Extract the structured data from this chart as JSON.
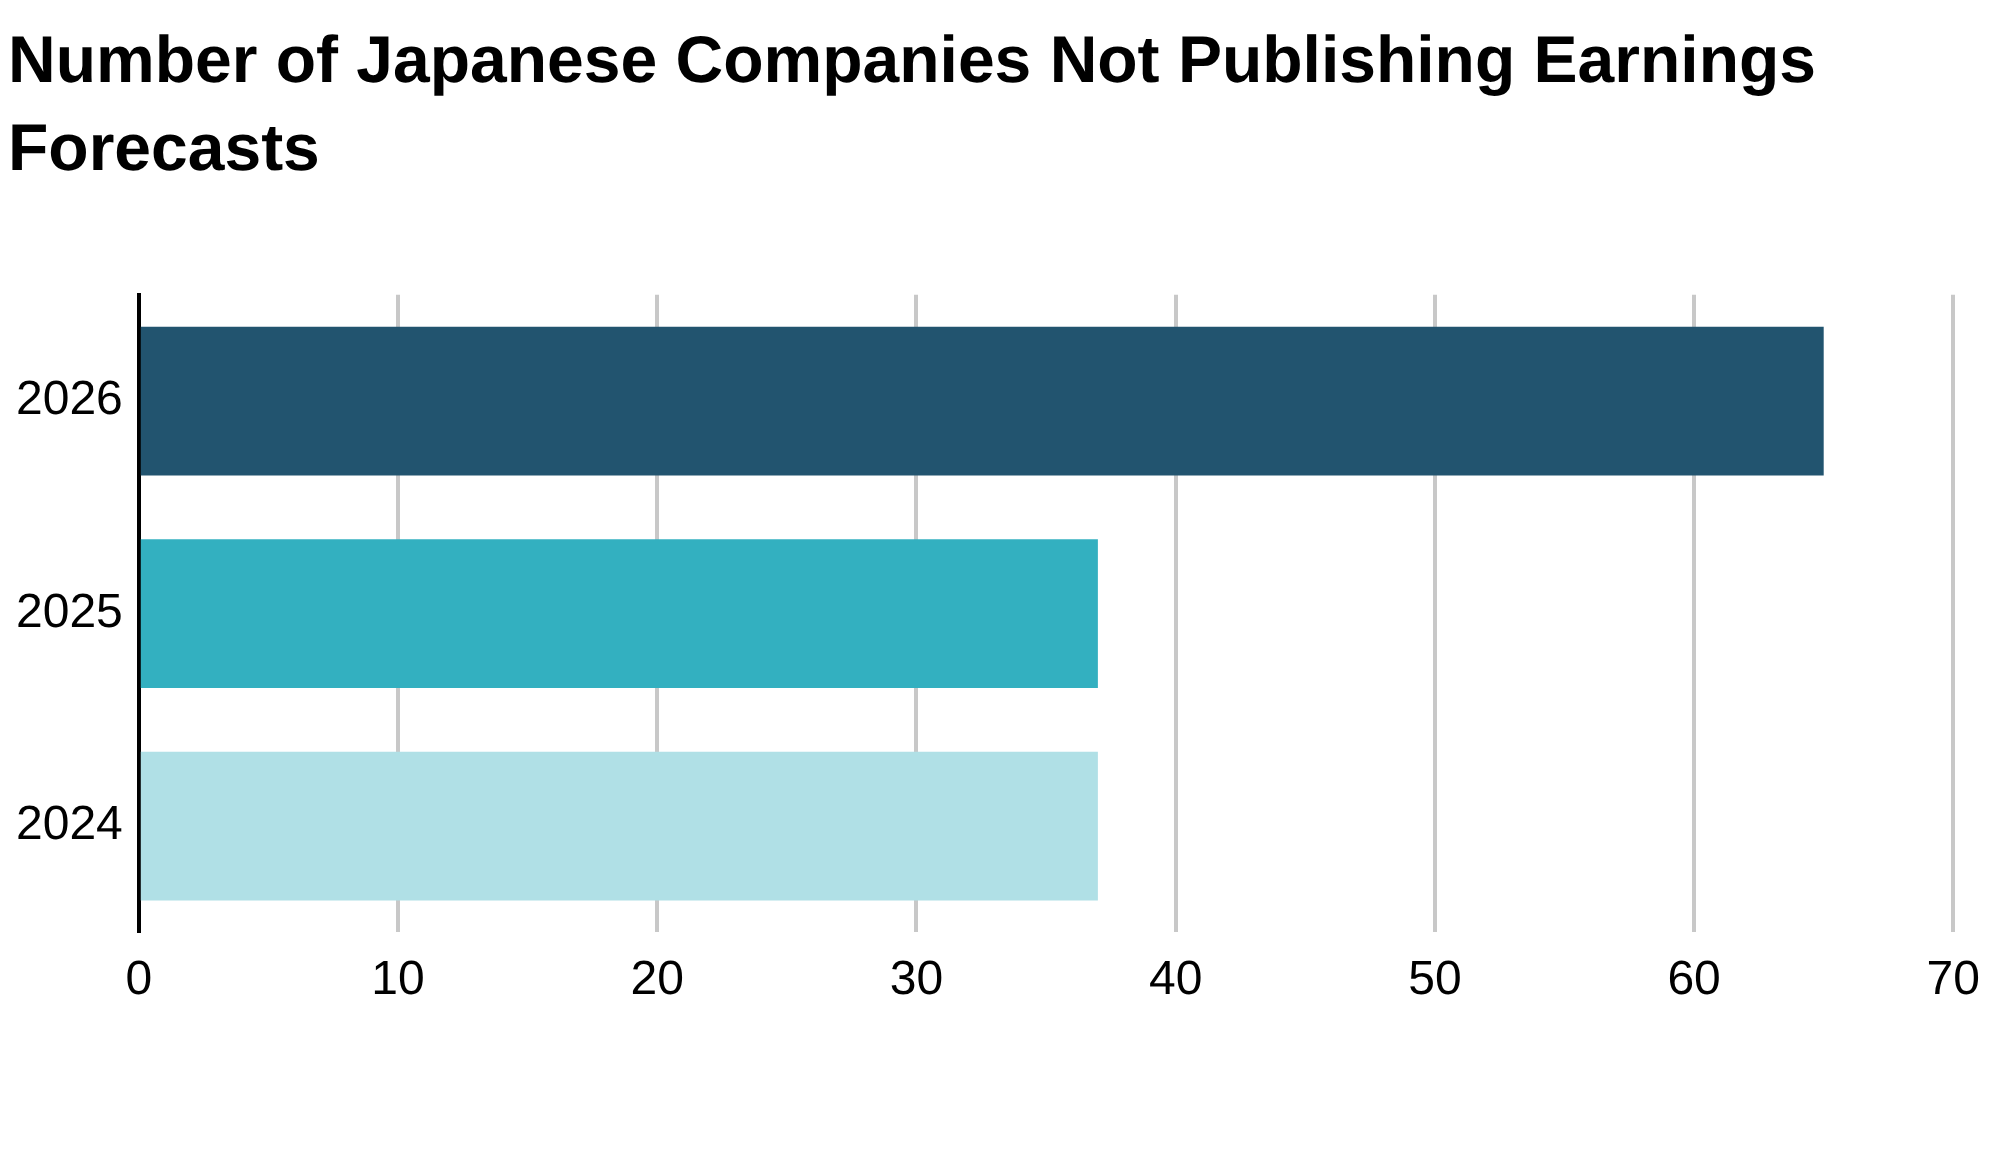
{
  "chart_data": {
    "type": "bar",
    "orientation": "horizontal",
    "title": "Number of Japanese Companies Not Publishing Earnings Forecasts",
    "categories": [
      "2026",
      "2025",
      "2024"
    ],
    "values": [
      65,
      37,
      37
    ],
    "colors": [
      "#22546f",
      "#33b0c0",
      "#b0e0e6"
    ],
    "xlim": [
      0,
      70
    ],
    "xticks": [
      0,
      10,
      20,
      30,
      40,
      50,
      60,
      70
    ],
    "grid": "x"
  }
}
